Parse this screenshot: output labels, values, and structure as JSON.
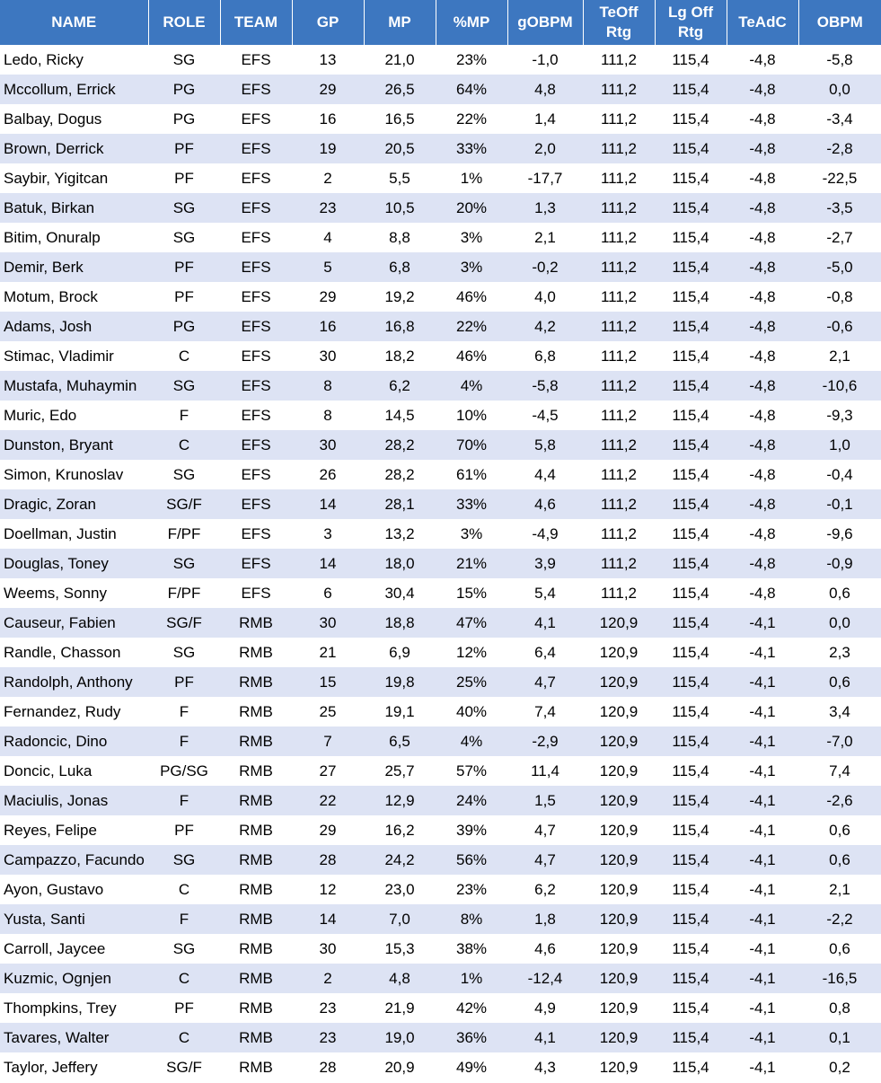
{
  "table": {
    "headers": [
      "NAME",
      "ROLE",
      "TEAM",
      "GP",
      "MP",
      "%MP",
      "gOBPM",
      "TeOff\nRtg",
      "Lg Off\nRtg",
      "TeAdC",
      "OBPM"
    ],
    "rows": [
      [
        "Ledo, Ricky",
        "SG",
        "EFS",
        "13",
        "21,0",
        "23%",
        "-1,0",
        "111,2",
        "115,4",
        "-4,8",
        "-5,8"
      ],
      [
        "Mccollum, Errick",
        "PG",
        "EFS",
        "29",
        "26,5",
        "64%",
        "4,8",
        "111,2",
        "115,4",
        "-4,8",
        "0,0"
      ],
      [
        "Balbay, Dogus",
        "PG",
        "EFS",
        "16",
        "16,5",
        "22%",
        "1,4",
        "111,2",
        "115,4",
        "-4,8",
        "-3,4"
      ],
      [
        "Brown, Derrick",
        "PF",
        "EFS",
        "19",
        "20,5",
        "33%",
        "2,0",
        "111,2",
        "115,4",
        "-4,8",
        "-2,8"
      ],
      [
        "Saybir, Yigitcan",
        "PF",
        "EFS",
        "2",
        "5,5",
        "1%",
        "-17,7",
        "111,2",
        "115,4",
        "-4,8",
        "-22,5"
      ],
      [
        "Batuk, Birkan",
        "SG",
        "EFS",
        "23",
        "10,5",
        "20%",
        "1,3",
        "111,2",
        "115,4",
        "-4,8",
        "-3,5"
      ],
      [
        "Bitim, Onuralp",
        "SG",
        "EFS",
        "4",
        "8,8",
        "3%",
        "2,1",
        "111,2",
        "115,4",
        "-4,8",
        "-2,7"
      ],
      [
        "Demir, Berk",
        "PF",
        "EFS",
        "5",
        "6,8",
        "3%",
        "-0,2",
        "111,2",
        "115,4",
        "-4,8",
        "-5,0"
      ],
      [
        "Motum, Brock",
        "PF",
        "EFS",
        "29",
        "19,2",
        "46%",
        "4,0",
        "111,2",
        "115,4",
        "-4,8",
        "-0,8"
      ],
      [
        "Adams, Josh",
        "PG",
        "EFS",
        "16",
        "16,8",
        "22%",
        "4,2",
        "111,2",
        "115,4",
        "-4,8",
        "-0,6"
      ],
      [
        "Stimac, Vladimir",
        "C",
        "EFS",
        "30",
        "18,2",
        "46%",
        "6,8",
        "111,2",
        "115,4",
        "-4,8",
        "2,1"
      ],
      [
        "Mustafa, Muhaymin",
        "SG",
        "EFS",
        "8",
        "6,2",
        "4%",
        "-5,8",
        "111,2",
        "115,4",
        "-4,8",
        "-10,6"
      ],
      [
        "Muric, Edo",
        "F",
        "EFS",
        "8",
        "14,5",
        "10%",
        "-4,5",
        "111,2",
        "115,4",
        "-4,8",
        "-9,3"
      ],
      [
        "Dunston, Bryant",
        "C",
        "EFS",
        "30",
        "28,2",
        "70%",
        "5,8",
        "111,2",
        "115,4",
        "-4,8",
        "1,0"
      ],
      [
        "Simon, Krunoslav",
        "SG",
        "EFS",
        "26",
        "28,2",
        "61%",
        "4,4",
        "111,2",
        "115,4",
        "-4,8",
        "-0,4"
      ],
      [
        "Dragic, Zoran",
        "SG/F",
        "EFS",
        "14",
        "28,1",
        "33%",
        "4,6",
        "111,2",
        "115,4",
        "-4,8",
        "-0,1"
      ],
      [
        "Doellman, Justin",
        "F/PF",
        "EFS",
        "3",
        "13,2",
        "3%",
        "-4,9",
        "111,2",
        "115,4",
        "-4,8",
        "-9,6"
      ],
      [
        "Douglas, Toney",
        "SG",
        "EFS",
        "14",
        "18,0",
        "21%",
        "3,9",
        "111,2",
        "115,4",
        "-4,8",
        "-0,9"
      ],
      [
        "Weems, Sonny",
        "F/PF",
        "EFS",
        "6",
        "30,4",
        "15%",
        "5,4",
        "111,2",
        "115,4",
        "-4,8",
        "0,6"
      ],
      [
        "Causeur, Fabien",
        "SG/F",
        "RMB",
        "30",
        "18,8",
        "47%",
        "4,1",
        "120,9",
        "115,4",
        "-4,1",
        "0,0"
      ],
      [
        "Randle, Chasson",
        "SG",
        "RMB",
        "21",
        "6,9",
        "12%",
        "6,4",
        "120,9",
        "115,4",
        "-4,1",
        "2,3"
      ],
      [
        "Randolph, Anthony",
        "PF",
        "RMB",
        "15",
        "19,8",
        "25%",
        "4,7",
        "120,9",
        "115,4",
        "-4,1",
        "0,6"
      ],
      [
        "Fernandez, Rudy",
        "F",
        "RMB",
        "25",
        "19,1",
        "40%",
        "7,4",
        "120,9",
        "115,4",
        "-4,1",
        "3,4"
      ],
      [
        "Radoncic, Dino",
        "F",
        "RMB",
        "7",
        "6,5",
        "4%",
        "-2,9",
        "120,9",
        "115,4",
        "-4,1",
        "-7,0"
      ],
      [
        "Doncic, Luka",
        "PG/SG",
        "RMB",
        "27",
        "25,7",
        "57%",
        "11,4",
        "120,9",
        "115,4",
        "-4,1",
        "7,4"
      ],
      [
        "Maciulis, Jonas",
        "F",
        "RMB",
        "22",
        "12,9",
        "24%",
        "1,5",
        "120,9",
        "115,4",
        "-4,1",
        "-2,6"
      ],
      [
        "Reyes, Felipe",
        "PF",
        "RMB",
        "29",
        "16,2",
        "39%",
        "4,7",
        "120,9",
        "115,4",
        "-4,1",
        "0,6"
      ],
      [
        "Campazzo, Facundo",
        "SG",
        "RMB",
        "28",
        "24,2",
        "56%",
        "4,7",
        "120,9",
        "115,4",
        "-4,1",
        "0,6"
      ],
      [
        "Ayon, Gustavo",
        "C",
        "RMB",
        "12",
        "23,0",
        "23%",
        "6,2",
        "120,9",
        "115,4",
        "-4,1",
        "2,1"
      ],
      [
        "Yusta, Santi",
        "F",
        "RMB",
        "14",
        "7,0",
        "8%",
        "1,8",
        "120,9",
        "115,4",
        "-4,1",
        "-2,2"
      ],
      [
        "Carroll, Jaycee",
        "SG",
        "RMB",
        "30",
        "15,3",
        "38%",
        "4,6",
        "120,9",
        "115,4",
        "-4,1",
        "0,6"
      ],
      [
        "Kuzmic, Ognjen",
        "C",
        "RMB",
        "2",
        "4,8",
        "1%",
        "-12,4",
        "120,9",
        "115,4",
        "-4,1",
        "-16,5"
      ],
      [
        "Thompkins, Trey",
        "PF",
        "RMB",
        "23",
        "21,9",
        "42%",
        "4,9",
        "120,9",
        "115,4",
        "-4,1",
        "0,8"
      ],
      [
        "Tavares, Walter",
        "C",
        "RMB",
        "23",
        "19,0",
        "36%",
        "4,1",
        "120,9",
        "115,4",
        "-4,1",
        "0,1"
      ],
      [
        "Taylor, Jeffery",
        "SG/F",
        "RMB",
        "28",
        "20,9",
        "49%",
        "4,3",
        "120,9",
        "115,4",
        "-4,1",
        "0,2"
      ]
    ]
  }
}
